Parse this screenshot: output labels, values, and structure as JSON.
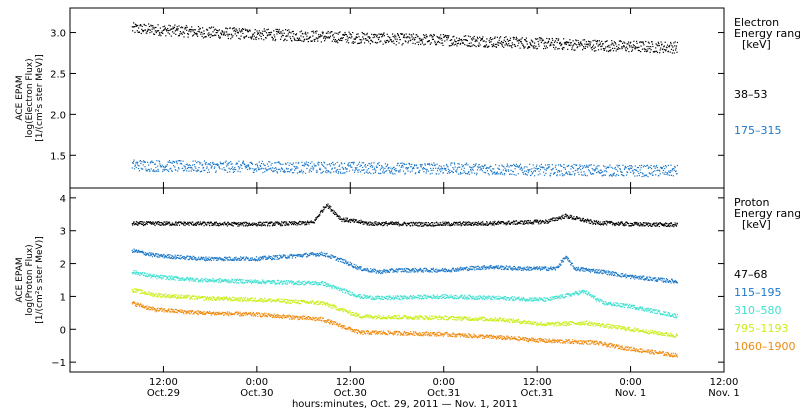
{
  "chart_data": [
    {
      "type": "scatter",
      "ylabel": [
        "ACE EPAM",
        "log(Electron Flux)",
        "[1/(cm²s ster MeV)]"
      ],
      "ylim": [
        1.1,
        3.3
      ],
      "yticks": [
        1.5,
        2.0,
        2.5,
        3.0
      ],
      "ytick_labels": [
        "1.5",
        "2.0",
        "2.5",
        "3.0"
      ],
      "legend_title": [
        "Electron",
        "Energy ranges",
        "[keV]"
      ],
      "series": [
        {
          "name": "38–53",
          "color": "#000000",
          "x": [
            29.33,
            29.5,
            29.75,
            30.0,
            30.25,
            30.5,
            30.75,
            31.0,
            31.25,
            31.5,
            31.75,
            32.0,
            32.25
          ],
          "y": [
            3.05,
            3.03,
            3.0,
            2.98,
            2.96,
            2.94,
            2.92,
            2.91,
            2.89,
            2.87,
            2.85,
            2.83,
            2.82
          ]
        },
        {
          "name": "175–315",
          "color": "#1c78c8",
          "x": [
            29.33,
            29.5,
            29.75,
            30.0,
            30.25,
            30.5,
            30.75,
            31.0,
            31.25,
            31.5,
            31.75,
            32.0,
            32.25
          ],
          "y": [
            1.38,
            1.37,
            1.36,
            1.36,
            1.35,
            1.35,
            1.34,
            1.34,
            1.33,
            1.32,
            1.32,
            1.31,
            1.31
          ]
        }
      ]
    },
    {
      "type": "scatter",
      "ylabel": [
        "ACE EPAM",
        "log(Proton Flux)",
        "[1/(cm²s ster MeV)]"
      ],
      "ylim": [
        -1.3,
        4.3
      ],
      "yticks": [
        -1,
        0,
        1,
        2,
        3,
        4
      ],
      "ytick_labels": [
        "−1",
        "0",
        "1",
        "2",
        "3",
        "4"
      ],
      "legend_title": [
        "Proton",
        "Energy ranges",
        "[keV]"
      ],
      "series": [
        {
          "name": "47–68",
          "color": "#000000",
          "x": [
            29.33,
            29.6,
            29.9,
            30.2,
            30.3,
            30.37,
            30.45,
            30.6,
            30.9,
            31.2,
            31.4,
            31.55,
            31.65,
            31.8,
            32.0,
            32.25
          ],
          "y": [
            3.22,
            3.22,
            3.2,
            3.22,
            3.25,
            3.8,
            3.35,
            3.22,
            3.2,
            3.22,
            3.25,
            3.28,
            3.45,
            3.25,
            3.2,
            3.18
          ]
        },
        {
          "name": "115–195",
          "color": "#1c78c8",
          "x": [
            29.33,
            29.45,
            29.7,
            30.0,
            30.35,
            30.45,
            30.55,
            30.65,
            30.75,
            31.0,
            31.25,
            31.4,
            31.6,
            31.65,
            31.7,
            31.85,
            32.0,
            32.25
          ],
          "y": [
            2.4,
            2.25,
            2.15,
            2.15,
            2.3,
            2.1,
            1.85,
            1.75,
            1.8,
            1.8,
            1.9,
            1.85,
            1.85,
            2.2,
            1.85,
            1.75,
            1.6,
            1.45
          ]
        },
        {
          "name": "310–580",
          "color": "#3fe0d0",
          "x": [
            29.33,
            29.45,
            29.7,
            30.0,
            30.35,
            30.45,
            30.55,
            30.65,
            31.0,
            31.3,
            31.55,
            31.75,
            31.85,
            32.0,
            32.25
          ],
          "y": [
            1.75,
            1.6,
            1.5,
            1.45,
            1.4,
            1.2,
            1.0,
            0.95,
            1.0,
            0.95,
            0.9,
            1.15,
            0.8,
            0.7,
            0.4
          ]
        },
        {
          "name": "795–1193",
          "color": "#c8ee1a",
          "x": [
            29.33,
            29.45,
            29.7,
            30.0,
            30.35,
            30.45,
            30.55,
            30.65,
            31.0,
            31.3,
            31.55,
            31.75,
            32.0,
            32.25
          ],
          "y": [
            1.2,
            1.05,
            0.95,
            0.9,
            0.8,
            0.6,
            0.4,
            0.38,
            0.35,
            0.3,
            0.15,
            0.2,
            0.0,
            -0.2
          ]
        },
        {
          "name": "1060–1900",
          "color": "#ef8a10",
          "x": [
            29.33,
            29.45,
            29.7,
            30.0,
            30.35,
            30.45,
            30.55,
            30.65,
            31.0,
            31.3,
            31.55,
            31.8,
            32.0,
            32.25
          ],
          "y": [
            0.8,
            0.6,
            0.5,
            0.45,
            0.3,
            0.1,
            -0.1,
            -0.1,
            -0.15,
            -0.25,
            -0.35,
            -0.4,
            -0.6,
            -0.8
          ]
        }
      ]
    }
  ],
  "x_axis": {
    "range": [
      29.0,
      32.5
    ],
    "ticks": [
      29.5,
      30.0,
      30.5,
      31.0,
      31.5,
      32.0,
      32.5
    ],
    "time_labels": [
      "12:00",
      "0:00",
      "12:00",
      "0:00",
      "12:00",
      "0:00",
      "12:00"
    ],
    "date_labels": [
      "Oct.29",
      "Oct.30",
      "Oct.30",
      "Oct.31",
      "Oct.31",
      "Nov. 1",
      "Nov. 1"
    ],
    "title": "hours:minutes, Oct. 29, 2011 — Nov. 1, 2011"
  }
}
